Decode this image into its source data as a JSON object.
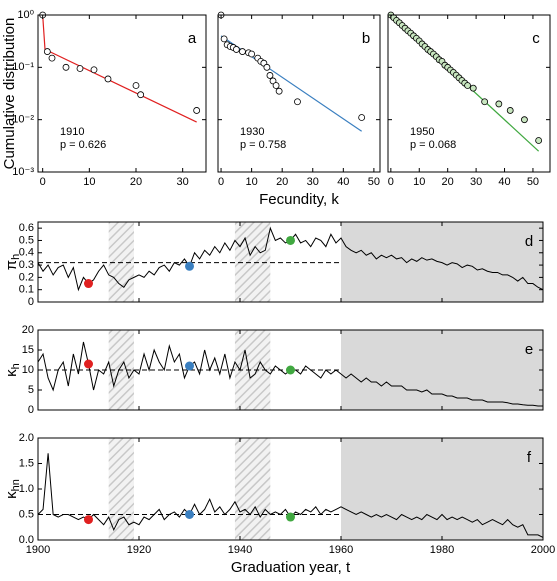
{
  "chart_data": [
    {
      "type": "scatter",
      "panel_label": "a",
      "year_label": "1910",
      "p_label": "p = 0.626",
      "ylabel": "Cumulative distribution",
      "yscale": "log",
      "ylim": [
        0.001,
        1
      ],
      "yticks": [
        {
          "value": 0.001,
          "label": "10⁻³"
        },
        {
          "value": 0.01,
          "label": "10⁻²"
        },
        {
          "value": 0.1,
          "label": "10⁻¹"
        },
        {
          "value": 1,
          "label": "10⁰"
        }
      ],
      "xlim": [
        -1,
        35
      ],
      "xticks": [
        0,
        10,
        20,
        30
      ],
      "color": "#e02020",
      "marker_fill": "#ffffff",
      "x": [
        0,
        1,
        2,
        5,
        8,
        11,
        14,
        20,
        21,
        33
      ],
      "values": [
        1,
        0.2,
        0.15,
        0.1,
        0.095,
        0.09,
        0.06,
        0.045,
        0.03,
        0.015
      ],
      "fit": {
        "x": [
          0,
          0.5,
          33
        ],
        "values": [
          1,
          0.22,
          0.009
        ]
      }
    },
    {
      "type": "scatter",
      "panel_label": "b",
      "year_label": "1930",
      "p_label": "p = 0.758",
      "xlabel": "Fecundity, k",
      "yscale": "log",
      "ylim": [
        0.001,
        1
      ],
      "yticks": [
        0.001,
        0.01,
        0.1,
        1
      ],
      "ytick_labels": false,
      "xlim": [
        -1,
        52
      ],
      "xticks": [
        0,
        10,
        20,
        30,
        40,
        50
      ],
      "color": "#3a7fc0",
      "marker_fill": "#ffffff",
      "x": [
        0,
        1,
        2,
        3,
        4,
        5,
        7,
        9,
        10,
        12,
        13,
        14,
        15,
        16,
        17,
        18,
        19,
        25,
        46
      ],
      "values": [
        1,
        0.35,
        0.27,
        0.25,
        0.24,
        0.22,
        0.2,
        0.19,
        0.18,
        0.15,
        0.13,
        0.12,
        0.1,
        0.07,
        0.055,
        0.045,
        0.035,
        0.022,
        0.011
      ],
      "fit": {
        "x": [
          0,
          46
        ],
        "values": [
          0.4,
          0.006
        ]
      }
    },
    {
      "type": "scatter",
      "panel_label": "c",
      "year_label": "1950",
      "p_label": "p = 0.068",
      "yscale": "log",
      "ylim": [
        0.001,
        1
      ],
      "yticks": [
        0.001,
        0.01,
        0.1,
        1
      ],
      "ytick_labels": false,
      "xlim": [
        -1,
        56
      ],
      "xticks": [
        0,
        10,
        20,
        30,
        40,
        50
      ],
      "color": "#40a840",
      "marker_fill": "#c8e6c0",
      "x": [
        0,
        1,
        2,
        3,
        4,
        5,
        6,
        7,
        8,
        9,
        10,
        11,
        12,
        13,
        14,
        15,
        16,
        17,
        18,
        19,
        20,
        21,
        22,
        23,
        24,
        25,
        26,
        27,
        29,
        33,
        38,
        42,
        47,
        52
      ],
      "values": [
        1,
        0.89,
        0.79,
        0.71,
        0.63,
        0.56,
        0.5,
        0.45,
        0.4,
        0.36,
        0.32,
        0.28,
        0.25,
        0.22,
        0.2,
        0.18,
        0.16,
        0.14,
        0.13,
        0.11,
        0.1,
        0.089,
        0.08,
        0.071,
        0.063,
        0.056,
        0.05,
        0.045,
        0.04,
        0.022,
        0.02,
        0.015,
        0.01,
        0.004
      ],
      "fit": {
        "x": [
          0,
          52
        ],
        "values": [
          1,
          0.0025
        ]
      }
    },
    {
      "type": "line",
      "panel_label": "d",
      "ylabel": {
        "main": "π",
        "sub": "h"
      },
      "ylim": [
        0,
        0.65
      ],
      "yticks": [
        0,
        0.1,
        0.2,
        0.3,
        0.4,
        0.5,
        0.6
      ],
      "xlim": [
        1900,
        2000
      ],
      "xticks": [
        1900,
        1920,
        1940,
        1960,
        1980,
        2000
      ],
      "xtick_labels": false,
      "shaded": [
        {
          "from": 1914,
          "to": 1919,
          "style": "hatch"
        },
        {
          "from": 1939,
          "to": 1946,
          "style": "hatch"
        },
        {
          "from": 1960,
          "to": 2000,
          "style": "solid"
        }
      ],
      "reference": {
        "value": 0.32,
        "from": 1900,
        "to": 1960
      },
      "highlights": [
        {
          "x": 1910,
          "value": 0.15,
          "color": "#e02020"
        },
        {
          "x": 1930,
          "value": 0.29,
          "color": "#3a7fc0"
        },
        {
          "x": 1950,
          "value": 0.5,
          "color": "#40a840"
        }
      ],
      "x": [
        1900,
        1901,
        1902,
        1903,
        1904,
        1905,
        1906,
        1907,
        1908,
        1909,
        1910,
        1911,
        1912,
        1913,
        1914,
        1915,
        1916,
        1917,
        1918,
        1919,
        1920,
        1921,
        1922,
        1923,
        1924,
        1925,
        1926,
        1927,
        1928,
        1929,
        1930,
        1931,
        1932,
        1933,
        1934,
        1935,
        1936,
        1937,
        1938,
        1939,
        1940,
        1941,
        1942,
        1943,
        1944,
        1945,
        1946,
        1947,
        1948,
        1949,
        1950,
        1951,
        1952,
        1953,
        1954,
        1955,
        1956,
        1957,
        1958,
        1959,
        1960,
        1961,
        1962,
        1963,
        1964,
        1965,
        1966,
        1967,
        1968,
        1969,
        1970,
        1971,
        1972,
        1973,
        1974,
        1975,
        1976,
        1977,
        1978,
        1979,
        1980,
        1981,
        1982,
        1983,
        1984,
        1985,
        1986,
        1987,
        1988,
        1989,
        1990,
        1991,
        1992,
        1993,
        1994,
        1995,
        1996,
        1997,
        1998,
        1999,
        2000
      ],
      "values": [
        0.32,
        0.25,
        0.3,
        0.22,
        0.28,
        0.3,
        0.2,
        0.28,
        0.1,
        0.2,
        0.15,
        0.18,
        0.25,
        0.3,
        0.22,
        0.2,
        0.15,
        0.12,
        0.18,
        0.2,
        0.22,
        0.2,
        0.25,
        0.22,
        0.28,
        0.3,
        0.25,
        0.32,
        0.3,
        0.35,
        0.29,
        0.4,
        0.35,
        0.42,
        0.38,
        0.45,
        0.4,
        0.48,
        0.42,
        0.5,
        0.45,
        0.52,
        0.38,
        0.45,
        0.4,
        0.42,
        0.6,
        0.5,
        0.52,
        0.48,
        0.5,
        0.55,
        0.48,
        0.5,
        0.45,
        0.52,
        0.5,
        0.45,
        0.55,
        0.48,
        0.52,
        0.45,
        0.42,
        0.4,
        0.42,
        0.38,
        0.4,
        0.35,
        0.38,
        0.36,
        0.38,
        0.35,
        0.36,
        0.32,
        0.35,
        0.33,
        0.36,
        0.34,
        0.35,
        0.33,
        0.32,
        0.3,
        0.32,
        0.31,
        0.28,
        0.3,
        0.29,
        0.26,
        0.27,
        0.25,
        0.24,
        0.24,
        0.22,
        0.22,
        0.2,
        0.17,
        0.2,
        0.15,
        0.15,
        0.12,
        0.1
      ]
    },
    {
      "type": "line",
      "panel_label": "e",
      "ylabel": {
        "main": "κ",
        "sub": "h"
      },
      "ylim": [
        0,
        20
      ],
      "yticks": [
        0,
        5,
        10,
        15,
        20
      ],
      "xlim": [
        1900,
        2000
      ],
      "xticks": [
        1900,
        1920,
        1940,
        1960,
        1980,
        2000
      ],
      "xtick_labels": false,
      "shaded": [
        {
          "from": 1914,
          "to": 1919,
          "style": "hatch"
        },
        {
          "from": 1939,
          "to": 1946,
          "style": "hatch"
        },
        {
          "from": 1960,
          "to": 2000,
          "style": "solid"
        }
      ],
      "reference": {
        "value": 10,
        "from": 1900,
        "to": 1960
      },
      "highlights": [
        {
          "x": 1910,
          "value": 11.5,
          "color": "#e02020"
        },
        {
          "x": 1930,
          "value": 11,
          "color": "#3a7fc0"
        },
        {
          "x": 1950,
          "value": 10,
          "color": "#40a840"
        }
      ],
      "x": [
        1900,
        1901,
        1902,
        1903,
        1904,
        1905,
        1906,
        1907,
        1908,
        1909,
        1910,
        1911,
        1912,
        1913,
        1914,
        1915,
        1916,
        1917,
        1918,
        1919,
        1920,
        1921,
        1922,
        1923,
        1924,
        1925,
        1926,
        1927,
        1928,
        1929,
        1930,
        1931,
        1932,
        1933,
        1934,
        1935,
        1936,
        1937,
        1938,
        1939,
        1940,
        1941,
        1942,
        1943,
        1944,
        1945,
        1946,
        1947,
        1948,
        1949,
        1950,
        1951,
        1952,
        1953,
        1954,
        1955,
        1956,
        1957,
        1958,
        1959,
        1960,
        1961,
        1962,
        1963,
        1964,
        1965,
        1966,
        1967,
        1968,
        1969,
        1970,
        1971,
        1972,
        1973,
        1974,
        1975,
        1976,
        1977,
        1978,
        1979,
        1980,
        1981,
        1982,
        1983,
        1984,
        1985,
        1986,
        1987,
        1988,
        1989,
        1990,
        1991,
        1992,
        1993,
        1994,
        1995,
        1996,
        1997,
        1998,
        1999,
        2000
      ],
      "values": [
        12,
        14,
        8,
        5,
        10,
        12,
        6,
        14,
        9,
        17,
        11.5,
        5,
        10,
        9,
        12,
        6,
        10,
        12,
        8,
        10,
        9,
        14,
        10,
        15,
        12,
        10,
        16,
        12,
        14,
        8,
        11,
        12,
        9,
        15,
        10,
        13,
        9,
        14,
        8,
        12,
        10,
        15,
        8,
        9,
        12,
        10,
        9,
        11,
        10,
        9,
        10,
        10,
        9,
        11,
        10,
        9,
        8,
        10,
        9,
        10,
        9,
        8,
        9,
        8,
        7,
        8,
        7,
        7,
        6,
        7,
        6,
        6,
        6,
        5,
        5,
        5,
        4.5,
        5,
        4,
        4,
        4,
        3.5,
        3.5,
        3,
        3,
        3,
        2.5,
        2.5,
        2.5,
        2,
        2,
        2,
        2,
        1.8,
        1.5,
        1.5,
        1.3,
        1.2,
        1.2,
        1,
        1
      ]
    },
    {
      "type": "line",
      "panel_label": "f",
      "ylabel": {
        "main": "κ",
        "sub": "hn"
      },
      "xlabel": "Graduation year, t",
      "ylim": [
        0,
        2
      ],
      "yticks": [
        {
          "value": 0,
          "label": "0.0"
        },
        {
          "value": 0.5,
          "label": "0.5"
        },
        {
          "value": 1,
          "label": "1.0"
        },
        {
          "value": 1.5,
          "label": "1.5"
        },
        {
          "value": 2,
          "label": "2.0"
        }
      ],
      "xlim": [
        1900,
        2000
      ],
      "xticks": [
        1900,
        1920,
        1940,
        1960,
        1980,
        2000
      ],
      "shaded": [
        {
          "from": 1914,
          "to": 1919,
          "style": "hatch"
        },
        {
          "from": 1939,
          "to": 1946,
          "style": "hatch"
        },
        {
          "from": 1960,
          "to": 2000,
          "style": "solid"
        }
      ],
      "reference": {
        "value": 0.5,
        "from": 1900,
        "to": 1960
      },
      "highlights": [
        {
          "x": 1910,
          "value": 0.4,
          "color": "#e02020"
        },
        {
          "x": 1930,
          "value": 0.5,
          "color": "#3a7fc0"
        },
        {
          "x": 1950,
          "value": 0.45,
          "color": "#40a840"
        }
      ],
      "x": [
        1900,
        1901,
        1902,
        1903,
        1904,
        1905,
        1906,
        1907,
        1908,
        1909,
        1910,
        1911,
        1912,
        1913,
        1914,
        1915,
        1916,
        1917,
        1918,
        1919,
        1920,
        1921,
        1922,
        1923,
        1924,
        1925,
        1926,
        1927,
        1928,
        1929,
        1930,
        1931,
        1932,
        1933,
        1934,
        1935,
        1936,
        1937,
        1938,
        1939,
        1940,
        1941,
        1942,
        1943,
        1944,
        1945,
        1946,
        1947,
        1948,
        1949,
        1950,
        1951,
        1952,
        1953,
        1954,
        1955,
        1956,
        1957,
        1958,
        1959,
        1960,
        1961,
        1962,
        1963,
        1964,
        1965,
        1966,
        1967,
        1968,
        1969,
        1970,
        1971,
        1972,
        1973,
        1974,
        1975,
        1976,
        1977,
        1978,
        1979,
        1980,
        1981,
        1982,
        1983,
        1984,
        1985,
        1986,
        1987,
        1988,
        1989,
        1990,
        1991,
        1992,
        1993,
        1994,
        1995,
        1996,
        1997,
        1998,
        1999,
        2000
      ],
      "values": [
        0.5,
        0.6,
        1.7,
        0.5,
        0.45,
        0.5,
        0.5,
        0.45,
        0.4,
        0.45,
        0.4,
        0.5,
        0.4,
        0.3,
        0.45,
        0.2,
        0.4,
        0.45,
        0.3,
        0.35,
        0.3,
        0.45,
        0.4,
        0.5,
        0.6,
        0.4,
        0.5,
        0.55,
        0.45,
        0.6,
        0.5,
        0.7,
        0.5,
        0.6,
        0.8,
        0.55,
        0.65,
        0.5,
        0.6,
        0.75,
        0.55,
        0.6,
        0.5,
        0.65,
        0.45,
        0.6,
        0.5,
        0.55,
        0.5,
        0.6,
        0.45,
        0.55,
        0.5,
        0.6,
        0.55,
        0.65,
        0.5,
        0.6,
        0.55,
        0.6,
        0.65,
        0.6,
        0.55,
        0.5,
        0.55,
        0.5,
        0.45,
        0.5,
        0.45,
        0.5,
        0.45,
        0.4,
        0.5,
        0.45,
        0.4,
        0.45,
        0.4,
        0.5,
        0.45,
        0.4,
        0.5,
        0.4,
        0.45,
        0.4,
        0.45,
        0.4,
        0.35,
        0.4,
        0.3,
        0.35,
        0.4,
        0.35,
        0.3,
        0.4,
        0.3,
        0.25,
        0.3,
        0.1,
        0.1,
        0.1,
        0.05
      ]
    }
  ]
}
